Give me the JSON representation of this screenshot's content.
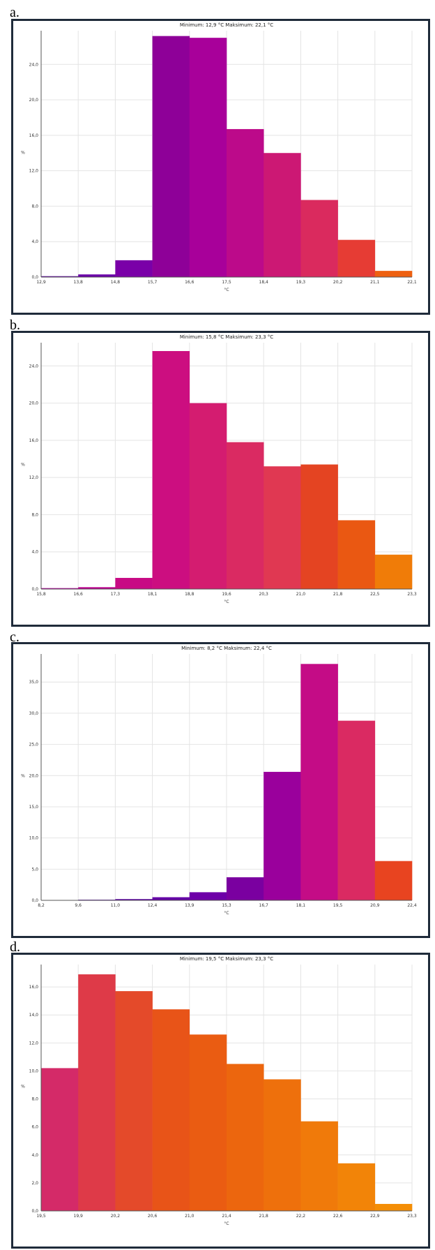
{
  "charts": [
    {
      "label": "a.",
      "chart_data": {
        "type": "bar",
        "title": "Minimum: 12,9 °C Maksimum: 22,1 °C",
        "xlabel": "°C",
        "ylabel": "%",
        "x_ticks": [
          "12,9",
          "13,8",
          "14,8",
          "15,7",
          "16,6",
          "17,5",
          "18,4",
          "19,3",
          "20,2",
          "21,1",
          "22,1"
        ],
        "y_ticks": [
          "0,0",
          "4,0",
          "8,0",
          "12,0",
          "16,0",
          "20,0",
          "24,0"
        ],
        "ylim": [
          0,
          27.8
        ],
        "values": [
          0.1,
          0.3,
          1.9,
          27.2,
          27.0,
          16.7,
          14.0,
          8.7,
          4.2,
          0.7
        ],
        "colors": [
          "#5a00a0",
          "#6a00a8",
          "#7a00a8",
          "#8e0098",
          "#a8009a",
          "#bc0a8a",
          "#cc1874",
          "#da2a5e",
          "#e63c34",
          "#ee6010"
        ],
        "grid": true
      }
    },
    {
      "label": "b.",
      "chart_data": {
        "type": "bar",
        "title": "Minimum: 15,8 °C Maksimum: 23,3 °C",
        "xlabel": "°C",
        "ylabel": "%",
        "x_ticks": [
          "15,8",
          "16,6",
          "17,3",
          "18,1",
          "18,8",
          "19,6",
          "20,3",
          "21,0",
          "21,8",
          "22,5",
          "23,3"
        ],
        "y_ticks": [
          "0,0",
          "4,0",
          "8,0",
          "12,0",
          "16,0",
          "20,0",
          "24,0"
        ],
        "ylim": [
          0,
          26.5
        ],
        "values": [
          0.1,
          0.2,
          1.2,
          25.6,
          20.0,
          15.8,
          13.2,
          13.4,
          7.4,
          3.7
        ],
        "colors": [
          "#b0009a",
          "#bc008e",
          "#c80a84",
          "#cc0e80",
          "#d41c70",
          "#da2a62",
          "#e03852",
          "#e44422",
          "#ea5812",
          "#f07c08"
        ],
        "grid": true
      }
    },
    {
      "label": "c.",
      "chart_data": {
        "type": "bar",
        "title": "Minimum: 8,2 °C Maksimum: 22,4 °C",
        "xlabel": "°C",
        "ylabel": "%",
        "x_ticks": [
          "8,2",
          "9,6",
          "11,0",
          "12,4",
          "13,9",
          "15,3",
          "16,7",
          "18,1",
          "19,5",
          "20,9",
          "22,4"
        ],
        "y_ticks": [
          "0,0",
          "5,0",
          "10,0",
          "15,0",
          "20,0",
          "25,0",
          "30,0",
          "35,0"
        ],
        "ylim": [
          0,
          39.5
        ],
        "values": [
          0.0,
          0.1,
          0.2,
          0.5,
          1.3,
          3.7,
          20.6,
          37.9,
          28.8,
          6.3
        ],
        "colors": [
          "#4a00a0",
          "#5000a0",
          "#5a00a4",
          "#6400a6",
          "#6e00a8",
          "#7a00a0",
          "#9a009c",
          "#c40c86",
          "#da2a62",
          "#e84420"
        ],
        "grid": true
      }
    },
    {
      "label": "d.",
      "chart_data": {
        "type": "bar",
        "title": "Minimum: 19,5 °C Maksimum: 23,3 °C",
        "xlabel": "°C",
        "ylabel": "%",
        "x_ticks": [
          "19,5",
          "19,9",
          "20,2",
          "20,6",
          "21,0",
          "21,4",
          "21,8",
          "22,2",
          "22,6",
          "22,9",
          "23,3"
        ],
        "y_ticks": [
          "0,0",
          "2,0",
          "4,0",
          "6,0",
          "8,0",
          "10,0",
          "12,0",
          "14,0",
          "16,0"
        ],
        "ylim": [
          0,
          17.6
        ],
        "values": [
          10.2,
          16.9,
          15.7,
          14.4,
          12.6,
          10.5,
          9.4,
          6.4,
          3.4,
          0.5
        ],
        "colors": [
          "#d42a68",
          "#de3a48",
          "#e44a2a",
          "#e85418",
          "#ea5c12",
          "#ec660e",
          "#ee700c",
          "#f07a0a",
          "#f28408",
          "#f48e06"
        ],
        "grid": true
      }
    }
  ]
}
